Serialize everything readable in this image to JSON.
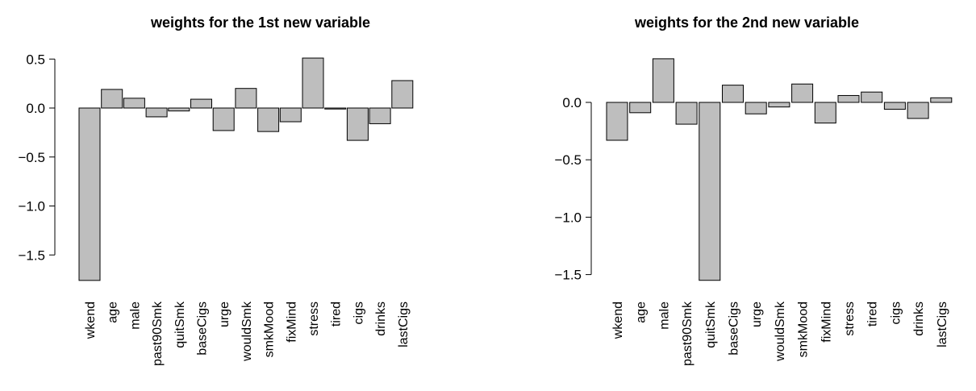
{
  "chart_data": [
    {
      "type": "bar",
      "title": "weights for the 1st new variable",
      "xlabel": "",
      "ylabel": "",
      "categories": [
        "wkend",
        "age",
        "male",
        "past90Smk",
        "quitSmk",
        "baseCigs",
        "urge",
        "wouldSmk",
        "smkMood",
        "fixMind",
        "stress",
        "tired",
        "cigs",
        "drinks",
        "lastCigs"
      ],
      "values": [
        -1.76,
        0.19,
        0.1,
        -0.09,
        -0.03,
        0.09,
        -0.23,
        0.2,
        -0.24,
        -0.14,
        0.51,
        -0.01,
        -0.33,
        -0.16,
        0.28
      ],
      "yticks": [
        -1.5,
        -1.0,
        -0.5,
        0.0,
        0.5
      ],
      "ytick_labels": [
        "−1.5",
        "−1.0",
        "−0.5",
        "0.0",
        "0.5"
      ],
      "ylim": [
        -1.76,
        0.51
      ],
      "bar_color": "#bebebe",
      "grid": false,
      "legend": "none"
    },
    {
      "type": "bar",
      "title": "weights for the 2nd new variable",
      "xlabel": "",
      "ylabel": "",
      "categories": [
        "wkend",
        "age",
        "male",
        "past90Smk",
        "quitSmk",
        "baseCigs",
        "urge",
        "wouldSmk",
        "smkMood",
        "fixMind",
        "stress",
        "tired",
        "cigs",
        "drinks",
        "lastCigs"
      ],
      "values": [
        -0.33,
        -0.09,
        0.38,
        -0.19,
        -1.55,
        0.15,
        -0.1,
        -0.04,
        0.16,
        -0.18,
        0.06,
        0.09,
        -0.06,
        -0.14,
        0.04
      ],
      "yticks": [
        -1.5,
        -1.0,
        -0.5,
        0.0
      ],
      "ytick_labels": [
        "−1.5",
        "−1.0",
        "−0.5",
        "0.0"
      ],
      "ylim": [
        -1.55,
        0.38
      ],
      "bar_color": "#bebebe",
      "grid": false,
      "legend": "none"
    }
  ]
}
